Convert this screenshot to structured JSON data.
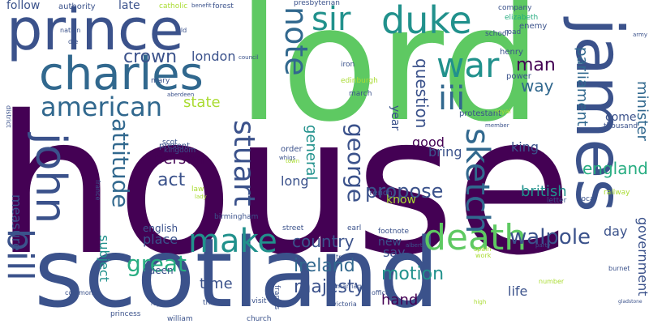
{
  "palette": {
    "dark_purple": "#440154",
    "indigo": "#3b528b",
    "blue": "#31688e",
    "teal": "#21918c",
    "green_teal": "#27ad81",
    "green": "#5ec962",
    "lime": "#aadc32",
    "yellow": "#fde725"
  },
  "words": [
    {
      "text": "house",
      "color": "dark_purple"
    },
    {
      "text": "lord",
      "color": "green"
    },
    {
      "text": "scotland",
      "color": "indigo"
    },
    {
      "text": "prince",
      "color": "indigo"
    },
    {
      "text": "james",
      "color": "indigo"
    },
    {
      "text": "charles",
      "color": "blue"
    },
    {
      "text": "sir",
      "color": "teal"
    },
    {
      "text": "duke",
      "color": "teal"
    },
    {
      "text": "war",
      "color": "teal"
    },
    {
      "text": "note",
      "color": "blue"
    },
    {
      "text": "john",
      "color": "indigo"
    },
    {
      "text": "bill",
      "color": "indigo"
    },
    {
      "text": "death",
      "color": "green"
    },
    {
      "text": "make",
      "color": "teal"
    },
    {
      "text": "american",
      "color": "blue"
    },
    {
      "text": "iii",
      "color": "blue"
    },
    {
      "text": "stuart",
      "color": "indigo"
    },
    {
      "text": "george",
      "color": "indigo"
    },
    {
      "text": "sketch",
      "color": "blue"
    },
    {
      "text": "attitude",
      "color": "blue"
    },
    {
      "text": "crown",
      "color": "indigo"
    },
    {
      "text": "walpole",
      "color": "indigo"
    },
    {
      "text": "propose",
      "color": "indigo"
    },
    {
      "text": "man",
      "color": "dark_purple"
    },
    {
      "text": "way",
      "color": "blue"
    },
    {
      "text": "question",
      "color": "indigo"
    },
    {
      "text": "parliament",
      "color": "blue"
    },
    {
      "text": "minister",
      "color": "blue"
    },
    {
      "text": "government",
      "color": "indigo"
    },
    {
      "text": "england",
      "color": "green_teal"
    },
    {
      "text": "great",
      "color": "green_teal"
    },
    {
      "text": "ireland",
      "color": "blue"
    },
    {
      "text": "country",
      "color": "indigo"
    },
    {
      "text": "motion",
      "color": "teal"
    },
    {
      "text": "majesty",
      "color": "indigo"
    },
    {
      "text": "state",
      "color": "lime"
    },
    {
      "text": "london",
      "color": "indigo"
    },
    {
      "text": "act",
      "color": "indigo"
    },
    {
      "text": "person",
      "color": "dark_purple"
    },
    {
      "text": "british",
      "color": "teal"
    },
    {
      "text": "king",
      "color": "indigo"
    },
    {
      "text": "time",
      "color": "indigo"
    },
    {
      "text": "place",
      "color": "indigo"
    },
    {
      "text": "hand",
      "color": "dark_purple"
    },
    {
      "text": "life",
      "color": "indigo"
    },
    {
      "text": "day",
      "color": "indigo"
    },
    {
      "text": "say",
      "color": "indigo"
    },
    {
      "text": "new",
      "color": "indigo"
    },
    {
      "text": "subject",
      "color": "teal"
    },
    {
      "text": "measure",
      "color": "indigo"
    },
    {
      "text": "general",
      "color": "teal"
    },
    {
      "text": "long",
      "color": "indigo"
    },
    {
      "text": "good",
      "color": "dark_purple"
    },
    {
      "text": "bring",
      "color": "indigo"
    },
    {
      "text": "know",
      "color": "lime"
    },
    {
      "text": "follow",
      "color": "indigo"
    },
    {
      "text": "late",
      "color": "indigo"
    },
    {
      "text": "come",
      "color": "indigo"
    },
    {
      "text": "year",
      "color": "indigo"
    },
    {
      "text": "queen",
      "color": "indigo"
    },
    {
      "text": "english",
      "color": "indigo"
    },
    {
      "text": "authority",
      "color": "indigo"
    },
    {
      "text": "catholic",
      "color": "lime"
    },
    {
      "text": "forest",
      "color": "indigo"
    },
    {
      "text": "presbyterian",
      "color": "indigo"
    },
    {
      "text": "company",
      "color": "indigo"
    },
    {
      "text": "elizabeth",
      "color": "green_teal"
    },
    {
      "text": "enemy",
      "color": "indigo"
    },
    {
      "text": "school",
      "color": "indigo"
    },
    {
      "text": "henry",
      "color": "indigo"
    },
    {
      "text": "power",
      "color": "indigo"
    },
    {
      "text": "edinburgh",
      "color": "lime"
    },
    {
      "text": "march",
      "color": "indigo"
    },
    {
      "text": "iron",
      "color": "indigo"
    },
    {
      "text": "road",
      "color": "indigo"
    },
    {
      "text": "protestant",
      "color": "indigo"
    },
    {
      "text": "royal",
      "color": "lime"
    },
    {
      "text": "thousand",
      "color": "indigo"
    },
    {
      "text": "kingdom",
      "color": "indigo"
    },
    {
      "text": "present",
      "color": "indigo"
    },
    {
      "text": "scot",
      "color": "indigo"
    },
    {
      "text": "order",
      "color": "indigo"
    },
    {
      "text": "french",
      "color": "indigo"
    },
    {
      "text": "letter",
      "color": "indigo"
    },
    {
      "text": "railway",
      "color": "lime"
    },
    {
      "text": "local",
      "color": "indigo"
    },
    {
      "text": "birmingham",
      "color": "indigo"
    },
    {
      "text": "street",
      "color": "indigo"
    },
    {
      "text": "earl",
      "color": "indigo"
    },
    {
      "text": "footnote",
      "color": "indigo"
    },
    {
      "text": "treaty",
      "color": "indigo"
    },
    {
      "text": "officer",
      "color": "indigo"
    },
    {
      "text": "marriage",
      "color": "indigo"
    },
    {
      "text": "francis",
      "color": "indigo"
    },
    {
      "text": "church",
      "color": "indigo"
    },
    {
      "text": "victoria",
      "color": "indigo"
    },
    {
      "text": "visit",
      "color": "indigo"
    },
    {
      "text": "think",
      "color": "indigo"
    },
    {
      "text": "william",
      "color": "indigo"
    },
    {
      "text": "princess",
      "color": "indigo"
    },
    {
      "text": "burnet",
      "color": "indigo"
    },
    {
      "text": "number",
      "color": "lime"
    },
    {
      "text": "spain",
      "color": "lime"
    },
    {
      "text": "work",
      "color": "lime"
    },
    {
      "text": "law",
      "color": "lime"
    },
    {
      "text": "france",
      "color": "indigo"
    },
    {
      "text": "district",
      "color": "indigo"
    },
    {
      "text": "nation",
      "color": "indigo"
    },
    {
      "text": "die",
      "color": "indigo"
    },
    {
      "text": "old",
      "color": "indigo"
    },
    {
      "text": "mary",
      "color": "indigo"
    },
    {
      "text": "aberdeen",
      "color": "indigo"
    },
    {
      "text": "council",
      "color": "indigo"
    },
    {
      "text": "commons",
      "color": "indigo"
    },
    {
      "text": "royalist",
      "color": "indigo"
    },
    {
      "text": "whigs",
      "color": "indigo"
    },
    {
      "text": "town",
      "color": "lime"
    },
    {
      "text": "army",
      "color": "indigo"
    },
    {
      "text": "lady",
      "color": "lime"
    },
    {
      "text": "benefit",
      "color": "indigo"
    },
    {
      "text": "member",
      "color": "indigo"
    },
    {
      "text": "albert",
      "color": "indigo"
    },
    {
      "text": "party",
      "color": "indigo"
    },
    {
      "text": "high",
      "color": "lime"
    },
    {
      "text": "gladstone",
      "color": "indigo"
    }
  ]
}
